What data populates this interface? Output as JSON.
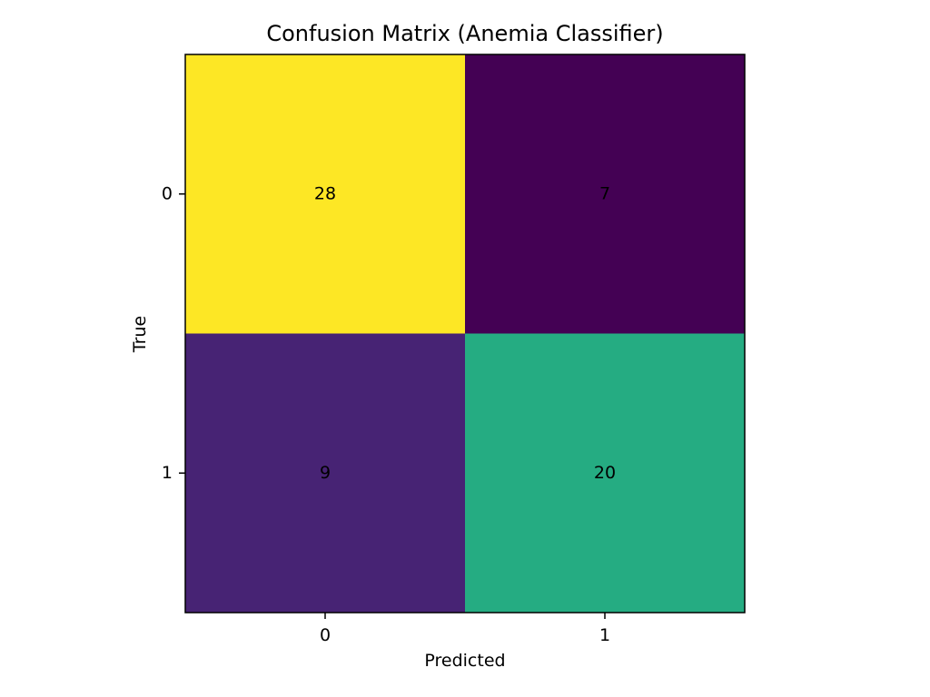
{
  "chart_data": {
    "type": "heatmap",
    "title": "Confusion Matrix (Anemia Classifier)",
    "xlabel": "Predicted",
    "ylabel": "True",
    "x_categories": [
      "0",
      "1"
    ],
    "y_categories": [
      "0",
      "1"
    ],
    "values": [
      [
        28,
        7
      ],
      [
        9,
        20
      ]
    ],
    "colormap": "viridis",
    "cell_colors": [
      [
        "#fde725",
        "#440154"
      ],
      [
        "#472374",
        "#25ac82"
      ]
    ],
    "grid": false,
    "legend": "none"
  }
}
